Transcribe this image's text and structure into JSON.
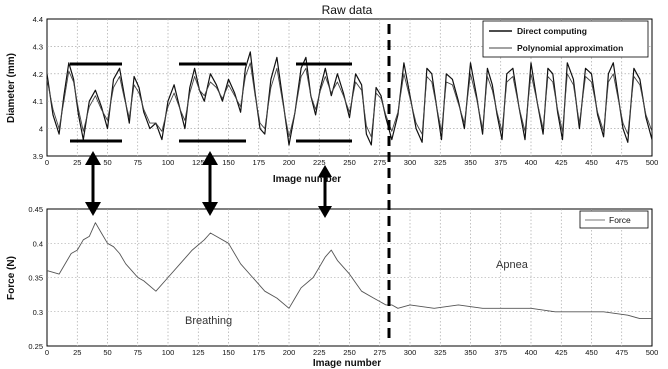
{
  "chart_data": [
    {
      "type": "line",
      "title": "Raw data",
      "xlabel": "Image number",
      "ylabel": "Diameter (mm)",
      "xlim": [
        0,
        500
      ],
      "ylim": [
        3.9,
        4.4
      ],
      "x_ticks": [
        0,
        25,
        50,
        75,
        100,
        125,
        150,
        175,
        200,
        225,
        250,
        275,
        300,
        325,
        350,
        375,
        400,
        425,
        450,
        475,
        500
      ],
      "y_ticks": [
        3.9,
        4,
        4.1,
        4.2,
        4.3,
        4.4
      ],
      "grid": true,
      "legend_position": "top-right",
      "series": [
        {
          "name": "Direct computing",
          "x": [
            0,
            5,
            10,
            14,
            18,
            22,
            26,
            30,
            35,
            40,
            45,
            50,
            55,
            60,
            64,
            68,
            72,
            76,
            80,
            85,
            90,
            95,
            100,
            105,
            110,
            114,
            118,
            122,
            126,
            130,
            135,
            140,
            145,
            150,
            155,
            160,
            164,
            168,
            172,
            176,
            180,
            185,
            190,
            195,
            200,
            205,
            210,
            214,
            218,
            222,
            226,
            230,
            235,
            240,
            245,
            250,
            255,
            260,
            264,
            268,
            272,
            276,
            280,
            285,
            290,
            295,
            300,
            305,
            310,
            314,
            318,
            322,
            326,
            330,
            335,
            340,
            345,
            350,
            355,
            360,
            364,
            368,
            372,
            376,
            380,
            385,
            390,
            395,
            400,
            405,
            410,
            414,
            418,
            422,
            426,
            430,
            435,
            440,
            445,
            450,
            455,
            460,
            464,
            468,
            472,
            476,
            480,
            485,
            490,
            495,
            500
          ],
          "values": [
            4.2,
            4.05,
            3.98,
            4.12,
            4.24,
            4.18,
            4.05,
            3.96,
            4.1,
            4.14,
            4.08,
            4.0,
            4.18,
            4.22,
            4.12,
            4.02,
            4.19,
            4.15,
            4.06,
            4.0,
            4.02,
            3.96,
            4.1,
            4.16,
            4.07,
            4.0,
            4.15,
            4.22,
            4.14,
            4.1,
            4.2,
            4.16,
            4.1,
            4.18,
            4.13,
            4.06,
            4.22,
            4.28,
            4.13,
            4.0,
            3.98,
            4.18,
            4.26,
            4.1,
            3.94,
            4.06,
            4.22,
            4.26,
            4.12,
            4.05,
            4.15,
            4.22,
            4.12,
            4.2,
            4.13,
            4.04,
            4.2,
            4.16,
            3.98,
            3.94,
            4.15,
            4.12,
            4.04,
            3.96,
            4.05,
            4.24,
            4.12,
            4.0,
            3.95,
            4.22,
            4.2,
            4.08,
            3.96,
            4.2,
            4.18,
            4.1,
            4.0,
            4.24,
            4.12,
            3.98,
            4.22,
            4.16,
            4.05,
            3.96,
            4.2,
            4.22,
            4.08,
            3.96,
            4.24,
            4.1,
            3.98,
            4.22,
            4.2,
            4.06,
            3.96,
            4.24,
            4.18,
            4.0,
            4.22,
            4.2,
            4.05,
            3.97,
            4.2,
            4.24,
            4.12,
            4.0,
            3.95,
            4.22,
            4.18,
            4.04,
            3.96
          ]
        },
        {
          "name": "Polynomial approximation",
          "x": [
            0,
            5,
            10,
            14,
            18,
            22,
            26,
            30,
            35,
            40,
            45,
            50,
            55,
            60,
            64,
            68,
            72,
            76,
            80,
            85,
            90,
            95,
            100,
            105,
            110,
            114,
            118,
            122,
            126,
            130,
            135,
            140,
            145,
            150,
            155,
            160,
            164,
            168,
            172,
            176,
            180,
            185,
            190,
            195,
            200,
            205,
            210,
            214,
            218,
            222,
            226,
            230,
            235,
            240,
            245,
            250,
            255,
            260,
            264,
            268,
            272,
            276,
            280,
            285,
            290,
            295,
            300,
            305,
            310,
            314,
            318,
            322,
            326,
            330,
            335,
            340,
            345,
            350,
            355,
            360,
            364,
            368,
            372,
            376,
            380,
            385,
            390,
            395,
            400,
            405,
            410,
            414,
            418,
            422,
            426,
            430,
            435,
            440,
            445,
            450,
            455,
            460,
            464,
            468,
            472,
            476,
            480,
            485,
            490,
            495,
            500
          ],
          "values": [
            4.18,
            4.07,
            4.0,
            4.1,
            4.21,
            4.17,
            4.07,
            3.99,
            4.08,
            4.12,
            4.07,
            4.03,
            4.15,
            4.19,
            4.11,
            4.04,
            4.16,
            4.13,
            4.07,
            4.02,
            4.02,
            3.99,
            4.08,
            4.13,
            4.07,
            4.03,
            4.13,
            4.19,
            4.14,
            4.12,
            4.17,
            4.15,
            4.11,
            4.16,
            4.12,
            4.08,
            4.19,
            4.24,
            4.12,
            4.02,
            4.0,
            4.15,
            4.22,
            4.09,
            3.97,
            4.06,
            4.19,
            4.22,
            4.12,
            4.07,
            4.14,
            4.19,
            4.13,
            4.17,
            4.12,
            4.06,
            4.17,
            4.14,
            4.01,
            3.97,
            4.13,
            4.11,
            4.05,
            3.99,
            4.06,
            4.2,
            4.11,
            4.02,
            3.98,
            4.19,
            4.17,
            4.08,
            3.99,
            4.17,
            4.16,
            4.09,
            4.02,
            4.2,
            4.11,
            4.0,
            4.19,
            4.14,
            4.06,
            3.99,
            4.17,
            4.19,
            4.08,
            3.99,
            4.2,
            4.1,
            4.0,
            4.19,
            4.17,
            4.07,
            3.99,
            4.2,
            4.16,
            4.02,
            4.19,
            4.17,
            4.06,
            3.99,
            4.17,
            4.2,
            4.11,
            4.02,
            3.98,
            4.19,
            4.16,
            4.05,
            3.99
          ]
        }
      ]
    },
    {
      "type": "line",
      "title": "",
      "xlabel": "Image number",
      "ylabel": "Force (N)",
      "xlim": [
        0,
        500
      ],
      "ylim": [
        0.25,
        0.45
      ],
      "x_ticks": [
        0,
        25,
        50,
        75,
        100,
        125,
        150,
        175,
        200,
        225,
        250,
        275,
        300,
        325,
        350,
        375,
        400,
        425,
        450,
        475,
        500
      ],
      "y_ticks": [
        0.25,
        0.3,
        0.35,
        0.4,
        0.45
      ],
      "grid": true,
      "legend_position": "top-right",
      "series": [
        {
          "name": "Force",
          "x": [
            0,
            10,
            20,
            25,
            30,
            35,
            40,
            45,
            50,
            55,
            60,
            65,
            70,
            75,
            80,
            90,
            100,
            110,
            120,
            130,
            135,
            140,
            150,
            160,
            170,
            180,
            190,
            200,
            205,
            210,
            220,
            225,
            230,
            235,
            240,
            250,
            260,
            270,
            280,
            285,
            290,
            300,
            320,
            340,
            360,
            380,
            400,
            420,
            440,
            460,
            480,
            490,
            500
          ],
          "values": [
            0.36,
            0.355,
            0.385,
            0.39,
            0.405,
            0.41,
            0.43,
            0.415,
            0.4,
            0.395,
            0.385,
            0.37,
            0.36,
            0.35,
            0.345,
            0.33,
            0.35,
            0.37,
            0.39,
            0.405,
            0.415,
            0.41,
            0.4,
            0.37,
            0.35,
            0.33,
            0.32,
            0.305,
            0.32,
            0.335,
            0.35,
            0.365,
            0.38,
            0.39,
            0.375,
            0.355,
            0.33,
            0.32,
            0.31,
            0.31,
            0.305,
            0.31,
            0.305,
            0.31,
            0.305,
            0.305,
            0.305,
            0.3,
            0.3,
            0.3,
            0.295,
            0.29,
            0.29
          ]
        }
      ]
    }
  ],
  "annotations": {
    "breathing": "Breathing",
    "apnea": "Apnea"
  },
  "colors": {
    "direct": "#111111",
    "poly": "#444444",
    "force": "#555555",
    "grid": "#9a9a9a",
    "marks": "#000000"
  }
}
